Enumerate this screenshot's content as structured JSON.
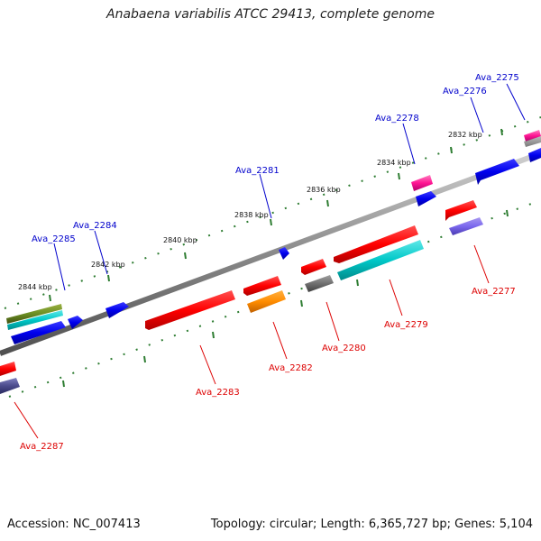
{
  "header": {
    "title": "Anabaena variabilis ATCC 29413, complete genome"
  },
  "footer": {
    "accession": "Accession: NC_007413",
    "summary": "Topology: circular; Length: 6,365,727 bp; Genes: 5,104"
  },
  "colors": {
    "forward_label": "#0000cc",
    "reverse_label": "#dd0000",
    "tick": "#2e7d32",
    "backbone": "#8a8a8a"
  },
  "scale_labels": [
    "2832 kbp",
    "2834 kbp",
    "2836 kbp",
    "2838 kbp",
    "2840 kbp",
    "2842 kbp",
    "2844 kbp"
  ],
  "forward_genes": [
    "Ava_2275",
    "Ava_2276",
    "Ava_2278",
    "Ava_2281",
    "Ava_2284",
    "Ava_2285"
  ],
  "reverse_genes": [
    "Ava_2277",
    "Ava_2279",
    "Ava_2280",
    "Ava_2282",
    "Ava_2283",
    "Ava_2287"
  ]
}
